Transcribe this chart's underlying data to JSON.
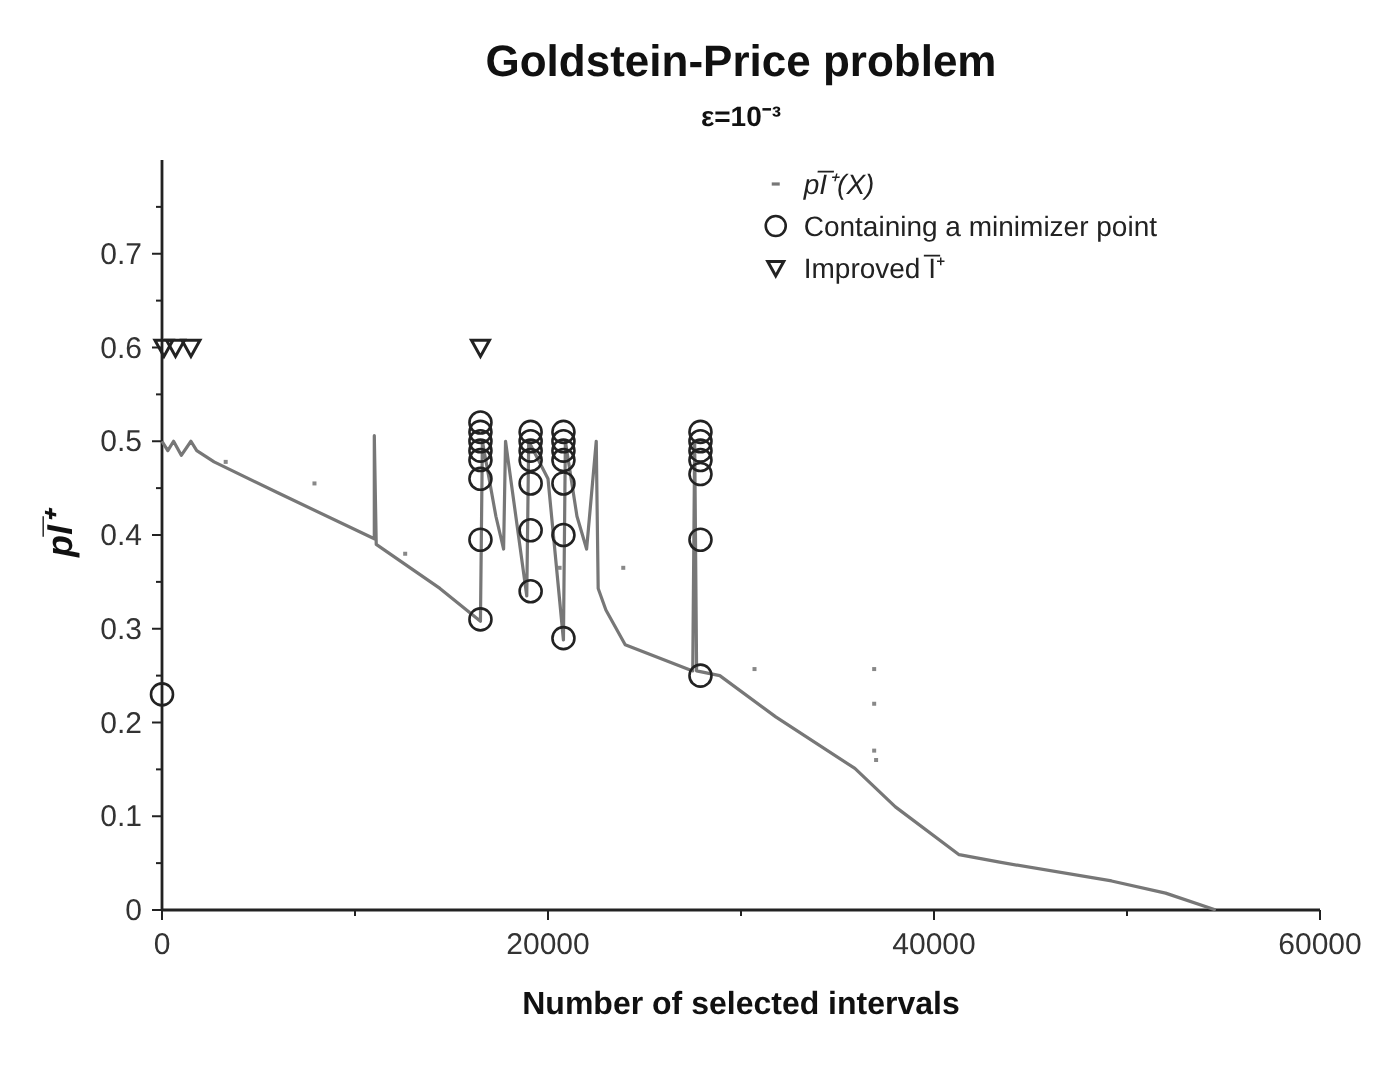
{
  "chart_data": {
    "type": "scatter",
    "title": "Goldstein-Price problem",
    "subtitle": "ε=10⁻³",
    "xlabel": "Number of selected intervals",
    "ylabel": "pI̅⁺",
    "xlim": [
      0,
      60000
    ],
    "ylim": [
      0,
      0.8
    ],
    "xticks": [
      0,
      {
        "value": 10000,
        "label": null
      },
      20000,
      {
        "value": 30000,
        "label": null
      },
      40000,
      {
        "value": 50000,
        "label": null
      },
      60000
    ],
    "yticks": [
      0,
      {
        "value": 0.05,
        "label": null
      },
      0.1,
      {
        "value": 0.15,
        "label": null
      },
      0.2,
      {
        "value": 0.25,
        "label": null
      },
      0.3,
      {
        "value": 0.35,
        "label": null
      },
      0.4,
      {
        "value": 0.45,
        "label": null
      },
      0.5,
      {
        "value": 0.55,
        "label": null
      },
      0.6,
      {
        "value": 0.65,
        "label": null
      },
      0.7,
      {
        "value": 0.75,
        "label": null
      }
    ],
    "legend": "top right",
    "grid": false,
    "series": [
      {
        "name": "pI̅⁺(X)",
        "type": "line",
        "marker": "none",
        "color": "#777777",
        "x": [
          0,
          300,
          600,
          1000,
          1500,
          1800,
          2700,
          6000,
          11000,
          11000,
          11100,
          14400,
          16500,
          16600,
          17300,
          17700,
          17800,
          18900,
          19000,
          20000,
          20800,
          20900,
          21500,
          22000,
          22500,
          22600,
          23000,
          24000,
          27500,
          27600,
          27700,
          28900,
          31800,
          35900,
          38000,
          41300,
          43400,
          49200,
          52000,
          54600
        ],
        "values": [
          0.5,
          0.49,
          0.5,
          0.485,
          0.5,
          0.49,
          0.478,
          0.445,
          0.396,
          0.506,
          0.39,
          0.343,
          0.308,
          0.5,
          0.42,
          0.385,
          0.5,
          0.335,
          0.5,
          0.46,
          0.288,
          0.5,
          0.42,
          0.385,
          0.5,
          0.343,
          0.32,
          0.283,
          0.255,
          0.5,
          0.255,
          0.25,
          0.206,
          0.151,
          0.11,
          0.059,
          0.051,
          0.031,
          0.018,
          0
        ]
      },
      {
        "marker": "square",
        "color": "#888888",
        "x": [
          3300,
          7900,
          12600,
          20600,
          23900,
          30700,
          36900,
          36900,
          36900,
          37000
        ],
        "values": [
          0.478,
          0.455,
          0.38,
          0.365,
          0.365,
          0.257,
          0.257,
          0.22,
          0.17,
          0.16
        ]
      },
      {
        "name": "Containing a minimizer point",
        "marker": "circle",
        "color": "#222222",
        "x": [
          0,
          16500,
          16500,
          16500,
          16500,
          16500,
          16500,
          16500,
          16500,
          19100,
          19100,
          19100,
          19100,
          19100,
          19100,
          19100,
          20800,
          20800,
          20800,
          20800,
          20800,
          20800,
          20800,
          27900,
          27900,
          27900,
          27900,
          27900,
          27900,
          27900
        ],
        "values": [
          0.23,
          0.31,
          0.395,
          0.46,
          0.48,
          0.49,
          0.5,
          0.51,
          0.52,
          0.34,
          0.405,
          0.455,
          0.48,
          0.49,
          0.5,
          0.51,
          0.29,
          0.4,
          0.455,
          0.48,
          0.49,
          0.5,
          0.51,
          0.25,
          0.395,
          0.465,
          0.48,
          0.49,
          0.5,
          0.51
        ]
      },
      {
        "name": "Improved I̅⁺",
        "marker": "triangle",
        "color": "#222222",
        "x": [
          100,
          700,
          1500,
          16500
        ],
        "values": [
          0.6,
          0.6,
          0.6,
          0.6
        ]
      }
    ]
  }
}
